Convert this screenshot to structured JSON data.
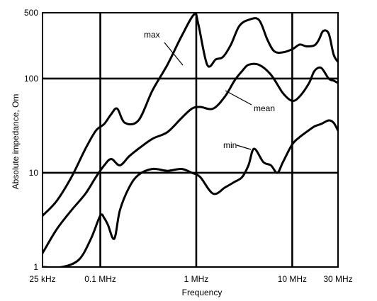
{
  "chart_data": {
    "type": "line",
    "title": "",
    "xlabel": "Frequency",
    "ylabel": "Absolute impedance, Om",
    "x_scale": "log",
    "y_scale": "log",
    "xlim": [
      0.025,
      30
    ],
    "ylim": [
      1,
      500
    ],
    "grid": true,
    "x_ticks": [
      {
        "value": 0.025,
        "label": "25 kHz"
      },
      {
        "value": 0.1,
        "label": "0.1 MHz"
      },
      {
        "value": 1,
        "label": "1 MHz"
      },
      {
        "value": 10,
        "label": "10 MHz"
      },
      {
        "value": 30,
        "label": "30 MHz"
      }
    ],
    "y_ticks": [
      {
        "value": 1,
        "label": "1"
      },
      {
        "value": 10,
        "label": "10"
      },
      {
        "value": 100,
        "label": "100"
      },
      {
        "value": 500,
        "label": "500"
      }
    ],
    "series": [
      {
        "name": "max",
        "x": [
          0.025,
          0.035,
          0.05,
          0.07,
          0.09,
          0.11,
          0.13,
          0.15,
          0.18,
          0.25,
          0.35,
          0.5,
          0.7,
          0.95,
          1.05,
          1.3,
          1.6,
          1.9,
          2.3,
          2.8,
          3.5,
          4.5,
          5.5,
          6.5,
          8,
          10,
          12,
          14,
          17,
          19,
          21,
          24,
          27,
          30
        ],
        "y": [
          3.5,
          5,
          9,
          18,
          28,
          33,
          42,
          48,
          34,
          36,
          75,
          140,
          280,
          480,
          380,
          140,
          160,
          170,
          230,
          360,
          420,
          420,
          260,
          195,
          190,
          205,
          230,
          220,
          225,
          260,
          320,
          300,
          180,
          150
        ]
      },
      {
        "name": "mean",
        "x": [
          0.025,
          0.035,
          0.05,
          0.07,
          0.09,
          0.11,
          0.13,
          0.16,
          0.2,
          0.25,
          0.35,
          0.5,
          0.7,
          0.9,
          1.1,
          1.5,
          2,
          2.5,
          3,
          3.5,
          4.5,
          6,
          8,
          10,
          12,
          15,
          17,
          20,
          24,
          27,
          30
        ],
        "y": [
          1.4,
          2.5,
          4,
          6,
          9,
          12,
          14,
          12,
          15,
          18,
          23,
          27,
          38,
          48,
          50,
          48,
          65,
          95,
          120,
          140,
          140,
          110,
          70,
          58,
          65,
          90,
          120,
          130,
          100,
          95,
          90
        ]
      },
      {
        "name": "min",
        "x": [
          0.025,
          0.04,
          0.06,
          0.08,
          0.1,
          0.11,
          0.12,
          0.14,
          0.16,
          0.2,
          0.25,
          0.35,
          0.5,
          0.7,
          0.9,
          1.1,
          1.5,
          2,
          2.5,
          3,
          3.5,
          4,
          5,
          6,
          7,
          8,
          10,
          12,
          14,
          17,
          20,
          24,
          27,
          30
        ],
        "y": [
          1,
          1,
          1.2,
          2,
          3.5,
          3.3,
          2.8,
          2,
          4,
          7,
          9.5,
          11,
          10.5,
          11,
          10,
          9,
          6,
          7,
          8,
          9,
          12,
          18,
          13,
          12,
          10,
          13,
          20,
          24,
          27,
          31,
          33,
          36,
          34,
          28
        ]
      }
    ],
    "annotations": [
      {
        "text": "max"
      },
      {
        "text": "mean"
      },
      {
        "text": "min"
      }
    ]
  }
}
